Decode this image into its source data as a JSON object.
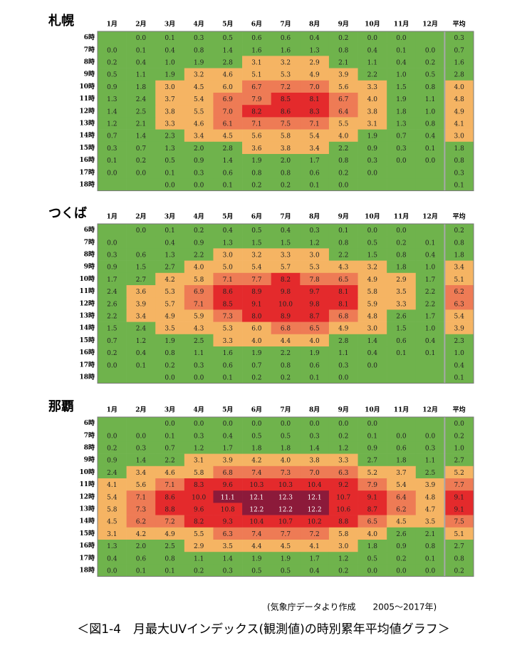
{
  "chart_data": [
    {
      "type": "heatmap",
      "title": "札幌",
      "x": [
        "1月",
        "2月",
        "3月",
        "4月",
        "5月",
        "6月",
        "7月",
        "8月",
        "9月",
        "10月",
        "11月",
        "12月",
        "平均"
      ],
      "y": [
        "6時",
        "7時",
        "8時",
        "9時",
        "10時",
        "11時",
        "12時",
        "13時",
        "14時",
        "15時",
        "16時",
        "17時",
        "18時"
      ],
      "values": [
        [
          null,
          "0.0",
          "0.1",
          "0.3",
          "0.5",
          "0.6",
          "0.6",
          "0.4",
          "0.2",
          "0.0",
          "0.0",
          null,
          "0.3"
        ],
        [
          "0.0",
          "0.1",
          "0.4",
          "0.8",
          "1.4",
          "1.6",
          "1.6",
          "1.3",
          "0.8",
          "0.4",
          "0.1",
          "0.0",
          "0.7"
        ],
        [
          "0.2",
          "0.4",
          "1.0",
          "1.9",
          "2.8",
          "3.1",
          "3.2",
          "2.9",
          "2.1",
          "1.1",
          "0.4",
          "0.2",
          "1.6"
        ],
        [
          "0.5",
          "1.1",
          "1.9",
          "3.2",
          "4.6",
          "5.1",
          "5.3",
          "4.9",
          "3.9",
          "2.2",
          "1.0",
          "0.5",
          "2.8"
        ],
        [
          "0.9",
          "1.8",
          "3.0",
          "4.5",
          "6.0",
          "6.7",
          "7.2",
          "7.0",
          "5.6",
          "3.3",
          "1.5",
          "0.8",
          "4.0"
        ],
        [
          "1.3",
          "2.4",
          "3.7",
          "5.4",
          "6.9",
          "7.9",
          "8.5",
          "8.1",
          "6.7",
          "4.0",
          "1.9",
          "1.1",
          "4.8"
        ],
        [
          "1.4",
          "2.5",
          "3.8",
          "5.5",
          "7.0",
          "8.2",
          "8.6",
          "8.3",
          "6.4",
          "3.8",
          "1.8",
          "1.0",
          "4.9"
        ],
        [
          "1.2",
          "2.1",
          "3.3",
          "4.6",
          "6.1",
          "7.1",
          "7.5",
          "7.1",
          "5.5",
          "3.1",
          "1.3",
          "0.8",
          "4.1"
        ],
        [
          "0.7",
          "1.4",
          "2.3",
          "3.4",
          "4.5",
          "5.6",
          "5.8",
          "5.4",
          "4.0",
          "1.9",
          "0.7",
          "0.4",
          "3.0"
        ],
        [
          "0.3",
          "0.7",
          "1.3",
          "2.0",
          "2.8",
          "3.6",
          "3.8",
          "3.4",
          "2.2",
          "0.9",
          "0.3",
          "0.1",
          "1.8"
        ],
        [
          "0.1",
          "0.2",
          "0.5",
          "0.9",
          "1.4",
          "1.9",
          "2.0",
          "1.7",
          "0.8",
          "0.3",
          "0.0",
          "0.0",
          "0.8"
        ],
        [
          "0.0",
          "0.0",
          "0.1",
          "0.3",
          "0.6",
          "0.8",
          "0.8",
          "0.6",
          "0.2",
          "0.0",
          null,
          null,
          "0.3"
        ],
        [
          null,
          null,
          "0.0",
          "0.0",
          "0.1",
          "0.2",
          "0.2",
          "0.1",
          "0.0",
          null,
          null,
          null,
          "0.1"
        ]
      ]
    },
    {
      "type": "heatmap",
      "title": "つくば",
      "x": [
        "1月",
        "2月",
        "3月",
        "4月",
        "5月",
        "6月",
        "7月",
        "8月",
        "9月",
        "10月",
        "11月",
        "12月",
        "平均"
      ],
      "y": [
        "6時",
        "7時",
        "8時",
        "9時",
        "10時",
        "11時",
        "12時",
        "13時",
        "14時",
        "15時",
        "16時",
        "17時",
        "18時"
      ],
      "values": [
        [
          null,
          "0.0",
          "0.1",
          "0.2",
          "0.4",
          "0.5",
          "0.4",
          "0.3",
          "0.1",
          "0.0",
          "0.0",
          null,
          "0.2"
        ],
        [
          "0.0",
          null,
          "0.4",
          "0.9",
          "1.3",
          "1.5",
          "1.5",
          "1.2",
          "0.8",
          "0.5",
          "0.2",
          "0.1",
          "0.8"
        ],
        [
          "0.3",
          "0.6",
          "1.3",
          "2.2",
          "3.0",
          "3.2",
          "3.3",
          "3.0",
          "2.2",
          "1.5",
          "0.8",
          "0.4",
          "1.8"
        ],
        [
          "0.9",
          "1.5",
          "2.7",
          "4.0",
          "5.0",
          "5.4",
          "5.7",
          "5.3",
          "4.3",
          "3.2",
          "1.8",
          "1.0",
          "3.4"
        ],
        [
          "1.7",
          "2.7",
          "4.2",
          "5.8",
          "7.1",
          "7.7",
          "8.2",
          "7.8",
          "6.5",
          "4.9",
          "2.9",
          "1.7",
          "5.1"
        ],
        [
          "2.4",
          "3.6",
          "5.3",
          "6.9",
          "8.6",
          "8.9",
          "9.8",
          "9.7",
          "8.1",
          "5.8",
          "3.5",
          "2.2",
          "6.2"
        ],
        [
          "2.6",
          "3.9",
          "5.7",
          "7.1",
          "8.5",
          "9.1",
          "10.0",
          "9.8",
          "8.1",
          "5.9",
          "3.3",
          "2.2",
          "6.3"
        ],
        [
          "2.2",
          "3.4",
          "4.9",
          "5.9",
          "7.3",
          "8.0",
          "8.9",
          "8.7",
          "6.8",
          "4.8",
          "2.6",
          "1.7",
          "5.4"
        ],
        [
          "1.5",
          "2.4",
          "3.5",
          "4.3",
          "5.3",
          "6.0",
          "6.8",
          "6.5",
          "4.9",
          "3.0",
          "1.5",
          "1.0",
          "3.9"
        ],
        [
          "0.7",
          "1.2",
          "1.9",
          "2.5",
          "3.3",
          "4.0",
          "4.4",
          "4.0",
          "2.8",
          "1.4",
          "0.6",
          "0.4",
          "2.3"
        ],
        [
          "0.2",
          "0.4",
          "0.8",
          "1.1",
          "1.6",
          "1.9",
          "2.2",
          "1.9",
          "1.1",
          "0.4",
          "0.1",
          "0.1",
          "1.0"
        ],
        [
          "0.0",
          "0.1",
          "0.2",
          "0.3",
          "0.6",
          "0.7",
          "0.8",
          "0.6",
          "0.3",
          "0.0",
          null,
          null,
          "0.4"
        ],
        [
          null,
          null,
          "0.0",
          "0.0",
          "0.1",
          "0.2",
          "0.2",
          "0.1",
          "0.0",
          null,
          null,
          null,
          "0.1"
        ]
      ]
    },
    {
      "type": "heatmap",
      "title": "那覇",
      "x": [
        "1月",
        "2月",
        "3月",
        "4月",
        "5月",
        "6月",
        "7月",
        "8月",
        "9月",
        "10月",
        "11月",
        "12月",
        "平均"
      ],
      "y": [
        "6時",
        "7時",
        "8時",
        "9時",
        "10時",
        "11時",
        "12時",
        "13時",
        "14時",
        "15時",
        "16時",
        "17時",
        "18時"
      ],
      "values": [
        [
          null,
          null,
          "0.0",
          "0.0",
          "0.0",
          "0.0",
          "0.0",
          "0.0",
          "0.0",
          "0.0",
          null,
          null,
          "0.0"
        ],
        [
          "0.0",
          "0.0",
          "0.1",
          "0.3",
          "0.4",
          "0.5",
          "0.5",
          "0.3",
          "0.2",
          "0.1",
          "0.0",
          "0.0",
          "0.2"
        ],
        [
          "0.2",
          "0.3",
          "0.7",
          "1.2",
          "1.7",
          "1.8",
          "1.8",
          "1.4",
          "1.2",
          "0.9",
          "0.6",
          "0.3",
          "1.0"
        ],
        [
          "0.9",
          "1.4",
          "2.2",
          "3.1",
          "3.9",
          "4.2",
          "4.0",
          "3.8",
          "3.3",
          "2.7",
          "1.8",
          "1.1",
          "2.7"
        ],
        [
          "2.4",
          "3.4",
          "4.6",
          "5.8",
          "6.8",
          "7.4",
          "7.3",
          "7.0",
          "6.3",
          "5.2",
          "3.7",
          "2.5",
          "5.2"
        ],
        [
          "4.1",
          "5.6",
          "7.1",
          "8.3",
          "9.6",
          "10.3",
          "10.3",
          "10.4",
          "9.2",
          "7.9",
          "5.4",
          "3.9",
          "7.7"
        ],
        [
          "5.4",
          "7.1",
          "8.6",
          "10.0",
          "11.1",
          "12.1",
          "12.3",
          "12.1",
          "10.7",
          "9.1",
          "6.4",
          "4.8",
          "9.1"
        ],
        [
          "5.8",
          "7.3",
          "8.8",
          "9.6",
          "10.8",
          "12.2",
          "12.2",
          "12.2",
          "10.6",
          "8.7",
          "6.2",
          "4.7",
          "9.1"
        ],
        [
          "4.5",
          "6.2",
          "7.2",
          "8.2",
          "9.3",
          "10.4",
          "10.7",
          "10.2",
          "8.8",
          "6.5",
          "4.5",
          "3.5",
          "7.5"
        ],
        [
          "3.1",
          "4.2",
          "4.9",
          "5.5",
          "6.3",
          "7.4",
          "7.7",
          "7.2",
          "5.8",
          "4.0",
          "2.6",
          "2.1",
          "5.1"
        ],
        [
          "1.3",
          "2.0",
          "2.5",
          "2.9",
          "3.5",
          "4.4",
          "4.5",
          "4.1",
          "3.0",
          "1.8",
          "0.9",
          "0.8",
          "2.7"
        ],
        [
          "0.4",
          "0.6",
          "0.8",
          "1.1",
          "1.4",
          "1.9",
          "1.9",
          "1.7",
          "1.2",
          "0.5",
          "0.2",
          "0.1",
          "0.8"
        ],
        [
          "0.0",
          "0.1",
          "0.1",
          "0.2",
          "0.3",
          "0.5",
          "0.5",
          "0.4",
          "0.2",
          "0.0",
          "0.0",
          "0.0",
          "0.2"
        ]
      ]
    }
  ],
  "note": "(気象庁データより作成　　2005～2017年)",
  "caption": "＜図1-4　月最大UVインデックス(観測値)の時別累年平均値グラフ＞"
}
